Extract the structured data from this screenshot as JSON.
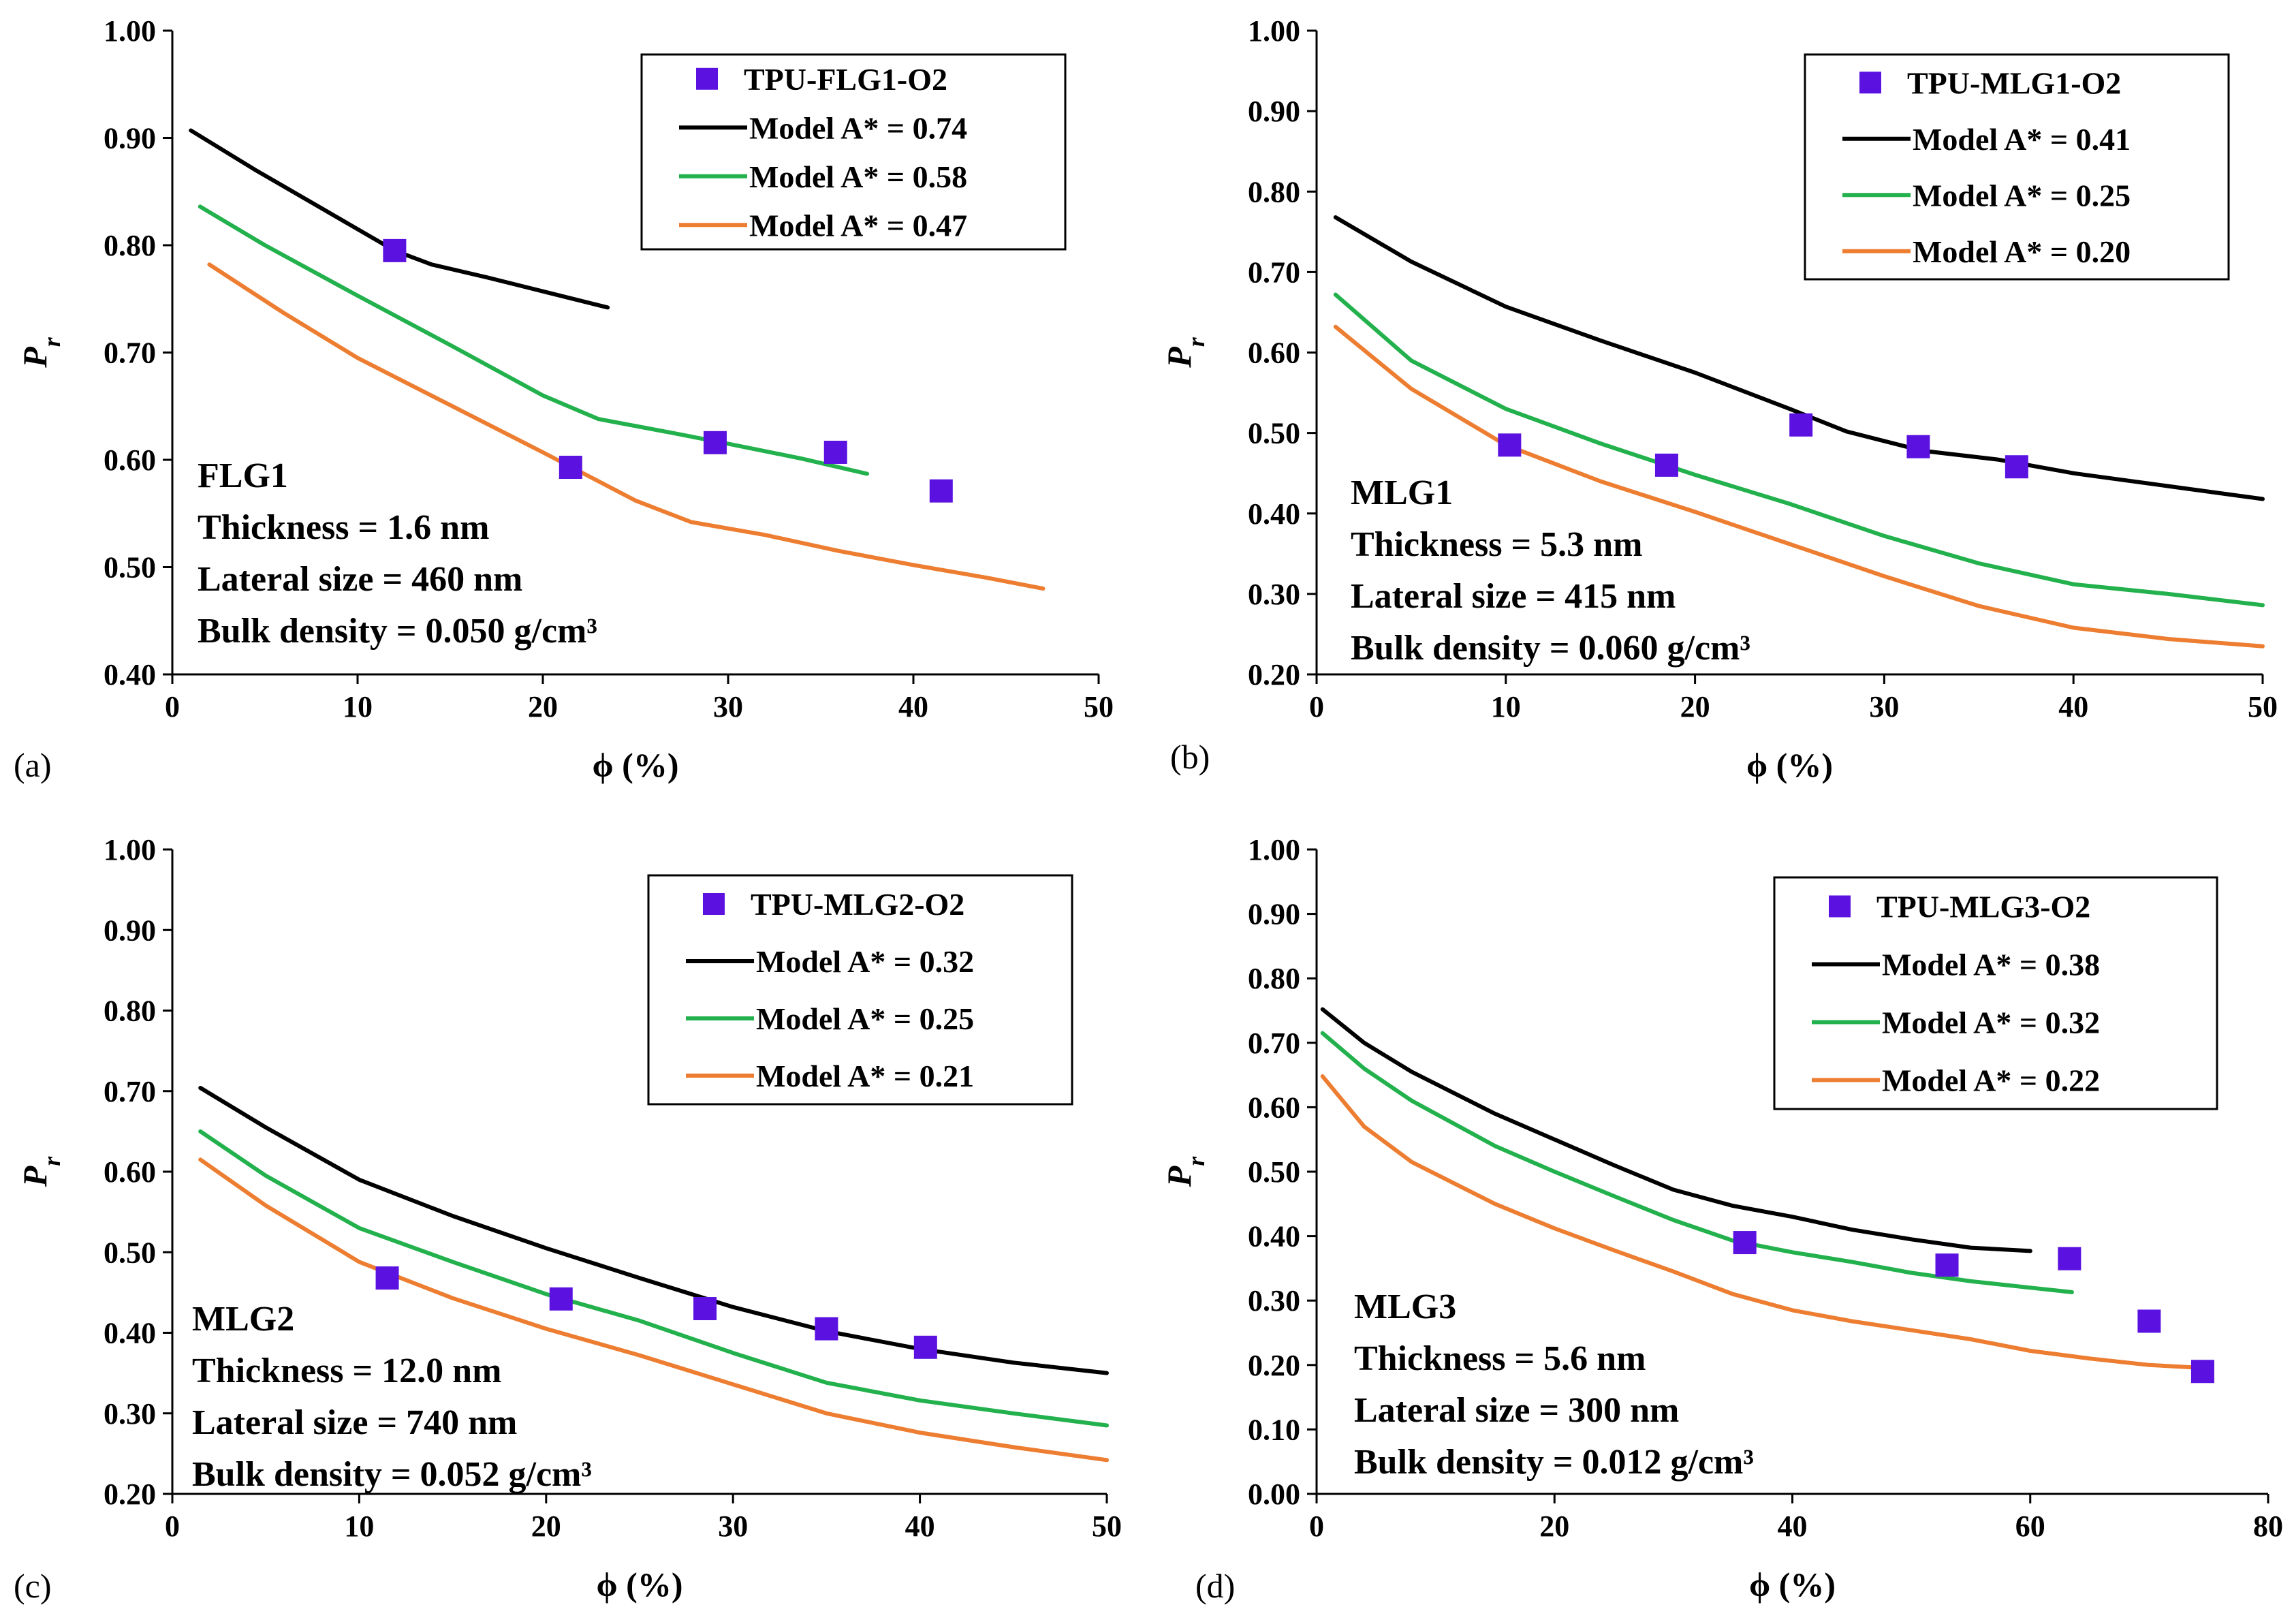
{
  "chart_data": [
    {
      "type": "scatter",
      "panel_label": "(a)",
      "xlabel": "ϕ (%)",
      "ylabel": "P",
      "ylabel_sub": "r",
      "xlim": [
        0,
        50
      ],
      "ylim": [
        0.4,
        1.0
      ],
      "x_ticks": [
        "0",
        "10",
        "20",
        "30",
        "40",
        "50"
      ],
      "y_ticks": [
        "0.40",
        "0.50",
        "0.60",
        "0.70",
        "0.80",
        "0.90",
        "1.00"
      ],
      "legend_position": "top-right",
      "annotation": [
        "FLG1",
        "Thickness = 1.6 nm",
        "Lateral size = 460 nm",
        "Bulk density = 0.050 g/cm³"
      ],
      "markers": {
        "name": "TPU-FLG1-O2",
        "color": "#5B12E0",
        "x": [
          12.0,
          21.5,
          29.3,
          35.8,
          41.5
        ],
        "y": [
          0.795,
          0.593,
          0.616,
          0.607,
          0.571
        ]
      },
      "series": [
        {
          "name": "Model A* = 0.74",
          "color": "#000000",
          "x": [
            1.0,
            4.5,
            8.0,
            12.0,
            14.0,
            17.0,
            20.0,
            23.5
          ],
          "y": [
            0.907,
            0.87,
            0.835,
            0.795,
            0.782,
            0.77,
            0.757,
            0.742
          ]
        },
        {
          "name": "Model A* = 0.58",
          "color": "#22B14C",
          "x": [
            1.5,
            5.0,
            10.0,
            15.0,
            20.0,
            23.0,
            27.0,
            30.0,
            34.0,
            37.5
          ],
          "y": [
            0.836,
            0.8,
            0.753,
            0.707,
            0.66,
            0.638,
            0.625,
            0.615,
            0.601,
            0.587
          ]
        },
        {
          "name": "Model A* = 0.47",
          "color": "#ED7D31",
          "x": [
            2.0,
            6.0,
            10.0,
            15.0,
            20.0,
            25.0,
            28.0,
            32.0,
            36.0,
            40.0,
            44.0,
            47.0
          ],
          "y": [
            0.782,
            0.737,
            0.695,
            0.651,
            0.607,
            0.562,
            0.542,
            0.53,
            0.515,
            0.502,
            0.49,
            0.48
          ]
        }
      ]
    },
    {
      "type": "scatter",
      "panel_label": "(b)",
      "xlabel": "ϕ (%)",
      "ylabel": "P",
      "ylabel_sub": "r",
      "xlim": [
        0,
        50
      ],
      "ylim": [
        0.2,
        1.0
      ],
      "x_ticks": [
        "0",
        "10",
        "20",
        "30",
        "40",
        "50"
      ],
      "y_ticks": [
        "0.20",
        "0.30",
        "0.40",
        "0.50",
        "0.60",
        "0.70",
        "0.80",
        "0.90",
        "1.00"
      ],
      "legend_position": "top-right",
      "annotation": [
        "MLG1",
        "Thickness = 5.3 nm",
        "Lateral size = 415 nm",
        "Bulk density = 0.060 g/cm³"
      ],
      "markers": {
        "name": "TPU-MLG1-O2",
        "color": "#5B12E0",
        "x": [
          10.2,
          18.5,
          25.6,
          31.8,
          37.0
        ],
        "y": [
          0.485,
          0.46,
          0.51,
          0.483,
          0.458
        ]
      },
      "series": [
        {
          "name": "Model A* = 0.41",
          "color": "#000000",
          "x": [
            1.0,
            5.0,
            10.0,
            15.0,
            20.0,
            25.0,
            28.0,
            32.0,
            36.0,
            40.0,
            45.0,
            50.0
          ],
          "y": [
            0.768,
            0.713,
            0.657,
            0.615,
            0.575,
            0.53,
            0.502,
            0.478,
            0.467,
            0.45,
            0.434,
            0.418
          ]
        },
        {
          "name": "Model A* = 0.25",
          "color": "#22B14C",
          "x": [
            1.0,
            5.0,
            10.0,
            15.0,
            20.0,
            25.0,
            30.0,
            35.0,
            40.0,
            45.0,
            50.0
          ],
          "y": [
            0.672,
            0.59,
            0.53,
            0.487,
            0.448,
            0.412,
            0.372,
            0.338,
            0.312,
            0.3,
            0.286
          ]
        },
        {
          "name": "Model A* = 0.20",
          "color": "#ED7D31",
          "x": [
            1.0,
            5.0,
            10.0,
            15.0,
            20.0,
            25.0,
            30.0,
            35.0,
            40.0,
            45.0,
            50.0
          ],
          "y": [
            0.632,
            0.555,
            0.485,
            0.44,
            0.402,
            0.362,
            0.322,
            0.285,
            0.258,
            0.244,
            0.235
          ]
        }
      ]
    },
    {
      "type": "scatter",
      "panel_label": "(c)",
      "xlabel": "ϕ (%)",
      "ylabel": "P",
      "ylabel_sub": "r",
      "xlim": [
        0,
        50
      ],
      "ylim": [
        0.2,
        1.0
      ],
      "x_ticks": [
        "0",
        "10",
        "20",
        "30",
        "40",
        "50"
      ],
      "y_ticks": [
        "0.20",
        "0.30",
        "0.40",
        "0.50",
        "0.60",
        "0.70",
        "0.80",
        "0.90",
        "1.00"
      ],
      "legend_position": "top-right",
      "annotation": [
        "MLG2",
        "Thickness = 12.0 nm",
        "Lateral size = 740 nm",
        "Bulk density = 0.052 g/cm³"
      ],
      "markers": {
        "name": "TPU-MLG2-O2",
        "color": "#5B12E0",
        "x": [
          11.5,
          20.8,
          28.5,
          35.0,
          40.3
        ],
        "y": [
          0.468,
          0.442,
          0.43,
          0.405,
          0.382
        ]
      },
      "series": [
        {
          "name": "Model A* = 0.32",
          "color": "#000000",
          "x": [
            1.5,
            5.0,
            10.0,
            15.0,
            20.0,
            25.0,
            30.0,
            35.0,
            40.0,
            45.0,
            50.0
          ],
          "y": [
            0.704,
            0.655,
            0.59,
            0.545,
            0.505,
            0.468,
            0.432,
            0.402,
            0.38,
            0.363,
            0.35
          ]
        },
        {
          "name": "Model A* = 0.25",
          "color": "#22B14C",
          "x": [
            1.5,
            5.0,
            10.0,
            15.0,
            20.0,
            25.0,
            30.0,
            35.0,
            40.0,
            45.0,
            50.0
          ],
          "y": [
            0.65,
            0.595,
            0.53,
            0.488,
            0.448,
            0.415,
            0.375,
            0.338,
            0.316,
            0.3,
            0.285
          ]
        },
        {
          "name": "Model A* = 0.21",
          "color": "#ED7D31",
          "x": [
            1.5,
            5.0,
            10.0,
            15.0,
            20.0,
            25.0,
            30.0,
            35.0,
            40.0,
            45.0,
            50.0
          ],
          "y": [
            0.615,
            0.558,
            0.488,
            0.443,
            0.405,
            0.372,
            0.336,
            0.3,
            0.276,
            0.258,
            0.242
          ]
        }
      ]
    },
    {
      "type": "scatter",
      "panel_label": "(d)",
      "xlabel": "ϕ (%)",
      "ylabel": "P",
      "ylabel_sub": "r",
      "xlim": [
        0,
        80
      ],
      "ylim": [
        0.0,
        1.0
      ],
      "x_ticks": [
        "0",
        "20",
        "40",
        "60",
        "80"
      ],
      "y_ticks": [
        "0.00",
        "0.10",
        "0.20",
        "0.30",
        "0.40",
        "0.50",
        "0.60",
        "0.70",
        "0.80",
        "0.90",
        "1.00"
      ],
      "legend_position": "top-right",
      "annotation": [
        "MLG3",
        "Thickness = 5.6 nm",
        "Lateral size = 300 nm",
        "Bulk density = 0.012 g/cm³"
      ],
      "markers": {
        "name": "TPU-MLG3-O2",
        "color": "#5B12E0",
        "x": [
          36.0,
          53.0,
          63.3,
          70.0,
          74.5
        ],
        "y": [
          0.39,
          0.355,
          0.365,
          0.268,
          0.19
        ]
      },
      "series": [
        {
          "name": "Model A* = 0.38",
          "color": "#000000",
          "x": [
            0.5,
            4.0,
            8.0,
            15.0,
            20.0,
            25.0,
            30.0,
            35.0,
            40.0,
            45.0,
            50.0,
            55.0,
            60.0
          ],
          "y": [
            0.752,
            0.7,
            0.655,
            0.59,
            0.55,
            0.51,
            0.472,
            0.447,
            0.43,
            0.41,
            0.395,
            0.382,
            0.377
          ]
        },
        {
          "name": "Model A* = 0.32",
          "color": "#22B14C",
          "x": [
            0.5,
            4.0,
            8.0,
            15.0,
            20.0,
            25.0,
            30.0,
            35.0,
            40.0,
            45.0,
            50.0,
            55.0,
            60.0,
            63.5
          ],
          "y": [
            0.715,
            0.66,
            0.61,
            0.54,
            0.5,
            0.462,
            0.425,
            0.393,
            0.375,
            0.36,
            0.343,
            0.33,
            0.32,
            0.313
          ]
        },
        {
          "name": "Model A* = 0.22",
          "color": "#ED7D31",
          "x": [
            0.5,
            4.0,
            8.0,
            15.0,
            20.0,
            25.0,
            30.0,
            35.0,
            40.0,
            45.0,
            50.0,
            55.0,
            60.0,
            65.0,
            70.0,
            74.0
          ],
          "y": [
            0.648,
            0.57,
            0.515,
            0.45,
            0.412,
            0.378,
            0.345,
            0.31,
            0.285,
            0.268,
            0.254,
            0.24,
            0.222,
            0.21,
            0.2,
            0.196
          ]
        }
      ]
    }
  ]
}
